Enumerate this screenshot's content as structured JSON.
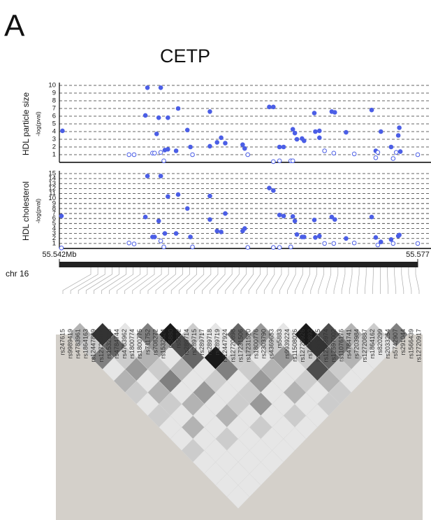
{
  "panel_label": "A",
  "title": "CETP",
  "chart_data": [
    {
      "type": "scatter",
      "ylabel": "HDL particle size",
      "y_unit": "-log(pval)",
      "grid": "dashed",
      "xlim": [
        55.542,
        55.577
      ],
      "ylim": [
        0,
        10
      ],
      "yticks": [
        1,
        2,
        3,
        4,
        5,
        6,
        7,
        8,
        9,
        10
      ],
      "series": [
        {
          "color": "#4b5ee6",
          "marker": "filled",
          "x": [
            55.5423,
            55.5506,
            55.5519,
            55.5504,
            55.5515,
            55.5517,
            55.5523,
            55.5526,
            55.5526,
            55.5536,
            55.5534,
            55.5545,
            55.5548,
            55.5567,
            55.5567,
            55.5574,
            55.5578,
            55.5582,
            55.5599,
            55.5601,
            55.5625,
            55.5629,
            55.5635,
            55.5639,
            55.5648,
            55.565,
            55.5652,
            55.5657,
            55.5659,
            55.5669,
            55.567,
            55.5674,
            55.5674,
            55.5686,
            55.5689,
            55.57,
            55.5725,
            55.5729,
            55.5734,
            55.5744,
            55.5751,
            55.5752,
            55.5753
          ],
          "values": [
            4.1,
            9.7,
            9.7,
            6.1,
            3.7,
            5.8,
            1.6,
            1.7,
            5.8,
            7.0,
            1.5,
            4.2,
            2,
            6.6,
            2.1,
            2.6,
            3.2,
            2.5,
            2.3,
            1.8,
            7.2,
            7.2,
            2,
            2,
            4.3,
            3.8,
            3,
            3.1,
            2.8,
            6.4,
            4.0,
            4.1,
            3.2,
            6.6,
            6.5,
            3.9,
            6.8,
            1.5,
            4.0,
            2.0,
            3.5,
            4.5,
            1.4
          ]
        },
        {
          "color": "#4b5ee6",
          "marker": "open",
          "x": [
            55.5488,
            55.5493,
            55.5511,
            55.5513,
            55.5522,
            55.5519,
            55.555,
            55.5629,
            55.5635,
            55.5646,
            55.5648,
            55.5679,
            55.5688,
            55.5708,
            55.5729,
            55.5731,
            55.5746,
            55.5749,
            55.577,
            55.5604
          ],
          "values": [
            1.0,
            1.0,
            1.2,
            1.2,
            0.2,
            1.3,
            1.0,
            0.1,
            0.2,
            0.2,
            0.2,
            1.5,
            1.2,
            1.1,
            0.6,
            1.3,
            0.5,
            1.3,
            1.0,
            1.0
          ]
        }
      ]
    },
    {
      "type": "scatter",
      "ylabel": "HDL cholesterol",
      "y_unit": "-log(pval)",
      "grid": "dashed",
      "xlim": [
        55.542,
        55.577
      ],
      "ylim": [
        0,
        15
      ],
      "yticks": [
        1,
        2,
        3,
        4,
        5,
        6,
        7,
        8,
        9,
        10,
        11,
        12,
        13,
        14,
        15
      ],
      "series": [
        {
          "color": "#4b5ee6",
          "marker": "filled",
          "x": [
            55.5422,
            55.5506,
            55.5519,
            55.5504,
            55.5513,
            55.5511,
            55.5517,
            55.5523,
            55.5526,
            55.5536,
            55.5534,
            55.5545,
            55.5548,
            55.5567,
            55.5567,
            55.5574,
            55.5578,
            55.5582,
            55.5599,
            55.5601,
            55.5625,
            55.5629,
            55.5635,
            55.5639,
            55.5648,
            55.565,
            55.5652,
            55.5657,
            55.5659,
            55.5669,
            55.567,
            55.5674,
            55.5686,
            55.5689,
            55.57,
            55.5725,
            55.5729,
            55.5734,
            55.5744,
            55.5751,
            55.5752
          ],
          "values": [
            6.5,
            14.5,
            14.5,
            6.3,
            2.3,
            2.3,
            5.5,
            3,
            10.4,
            10.8,
            3,
            8,
            2.3,
            10.5,
            5.8,
            3.5,
            3.3,
            7,
            3.5,
            4,
            12.1,
            11.6,
            6.7,
            6.5,
            6.4,
            5.5,
            2.8,
            2.3,
            2.3,
            5.7,
            2.2,
            2.5,
            6.3,
            5.8,
            2.0,
            6.3,
            2.2,
            1.3,
            1.8,
            2.5,
            2.7
          ]
        },
        {
          "color": "#4b5ee6",
          "marker": "open",
          "x": [
            55.5488,
            55.5493,
            55.5522,
            55.5519,
            55.555,
            55.5604,
            55.5629,
            55.5635,
            55.5646,
            55.5679,
            55.5688,
            55.5708,
            55.5731,
            55.5746,
            55.577,
            55.5422
          ],
          "values": [
            1.1,
            0.9,
            0.3,
            1.5,
            0.3,
            0.2,
            0.2,
            0.2,
            0.3,
            1.0,
            1.0,
            1.1,
            0.7,
            1.0,
            1.0,
            0.1
          ]
        }
      ]
    },
    {
      "type": "heatmap",
      "rows": [
        [
          0.3,
          0.8,
          0.1,
          0.5,
          0.9,
          0.2,
          0.1,
          0.6,
          0.4,
          0.1,
          0.9,
          0.7,
          0.3,
          0.2,
          0.5
        ],
        [
          0.2,
          0.6,
          0.1,
          0.4,
          0.7,
          0.1,
          0.1,
          0.3,
          0.2,
          0.1,
          0.8,
          0.5,
          0.2,
          0.1
        ],
        [
          0.5,
          0.2,
          0.3,
          0.1,
          0.6,
          0.9,
          0.2,
          0.1,
          0.4,
          0.2,
          0.6,
          0.3,
          0.1
        ],
        [
          0.1,
          0.4,
          0.2,
          0.3,
          0.1,
          0.5,
          0.2,
          0.3,
          0.1,
          0.7,
          0.2,
          0.1
        ],
        [
          0.3,
          0.1,
          0.5,
          0.1,
          0.2,
          0.1,
          0.4,
          0.1,
          0.2,
          0.3,
          0.1
        ],
        [
          0.2,
          0.3,
          0.1,
          0.4,
          0.1,
          0.2,
          0.1,
          0.3,
          0.1,
          0.2
        ],
        [
          0.1,
          0.2,
          0.3,
          0.1,
          0.2,
          0.4,
          0.1,
          0.1,
          0.2
        ],
        [
          0.2,
          0.1,
          0.1,
          0.3,
          0.1,
          0.1,
          0.2,
          0.1
        ],
        [
          0.1,
          0.3,
          0.1,
          0.1,
          0.2,
          0.1,
          0.1
        ],
        [
          0.1,
          0.1,
          0.2,
          0.1,
          0.1,
          0.1
        ],
        [
          0.2,
          0.1,
          0.1,
          0.1,
          0.1
        ],
        [
          0.1,
          0.1,
          0.1,
          0.1
        ],
        [
          0.1,
          0.1,
          0.1
        ],
        [
          0.1,
          0.1
        ],
        [
          0.1
        ]
      ]
    }
  ],
  "track": {
    "label": "chr 16",
    "xlim": [
      55.542,
      55.577
    ],
    "xticks": [
      {
        "value": 55.542,
        "label": "55.542Mb"
      },
      55.577
    ]
  },
  "snps": [
    "rs247615",
    "rs9989419",
    "rs4783961",
    "rs1864163",
    "rs12447839",
    "rs12720918",
    "rs1532625",
    "rs4784744",
    "rs4783962",
    "rs1800774",
    "rs1800775",
    "rs711752",
    "rs708272",
    "rs1532624",
    "rs5880",
    "rs5882",
    "rs289714",
    "rs289715",
    "rs289717",
    "rs289718",
    "rs289719",
    "rs12447924",
    "rs12720898",
    "rs17231506",
    "rs17231520",
    "rs1800776",
    "rs2303790",
    "rs4369653",
    "rs5883",
    "rs9939224",
    "rs11508026",
    "rs12720926",
    "rs7499892",
    "rs11076175",
    "rs12708974",
    "rs12597002",
    "rs11076176",
    "rs4784741",
    "rs7203984",
    "rs12720887",
    "rs1864162",
    "rs820299",
    "rs2033254",
    "rs5742907",
    "rs291044",
    "rs1566439",
    "rs12720917"
  ]
}
